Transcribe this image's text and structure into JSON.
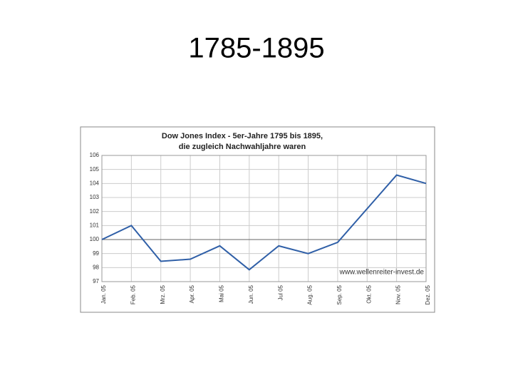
{
  "slide_title": "1785-1895",
  "chart_data": {
    "type": "line",
    "title": [
      "Dow Jones Index - 5er-Jahre 1795 bis 1895,",
      "die zugleich Nachwahljahre waren"
    ],
    "watermark": "www.wellenreiter-invest.de",
    "categories": [
      "Jan. 05",
      "Feb. 05",
      "Mrz. 05",
      "Apr. 05",
      "Mai 05",
      "Jun. 05",
      "Jul 05",
      "Aug. 05",
      "Sep. 05",
      "Okt. 05",
      "Nov. 05",
      "Dez. 05"
    ],
    "series": [
      {
        "name": "Dow Jones Index",
        "color": "#2f5fa7",
        "values": [
          100.0,
          101.0,
          98.45,
          98.6,
          99.55,
          97.85,
          99.55,
          99.0,
          99.8,
          102.2,
          104.6,
          104.0
        ]
      }
    ],
    "ylim": [
      97,
      106
    ],
    "yticks": [
      97,
      98,
      99,
      100,
      101,
      102,
      103,
      104,
      105,
      106
    ],
    "reference_line": 100,
    "grid": true
  }
}
